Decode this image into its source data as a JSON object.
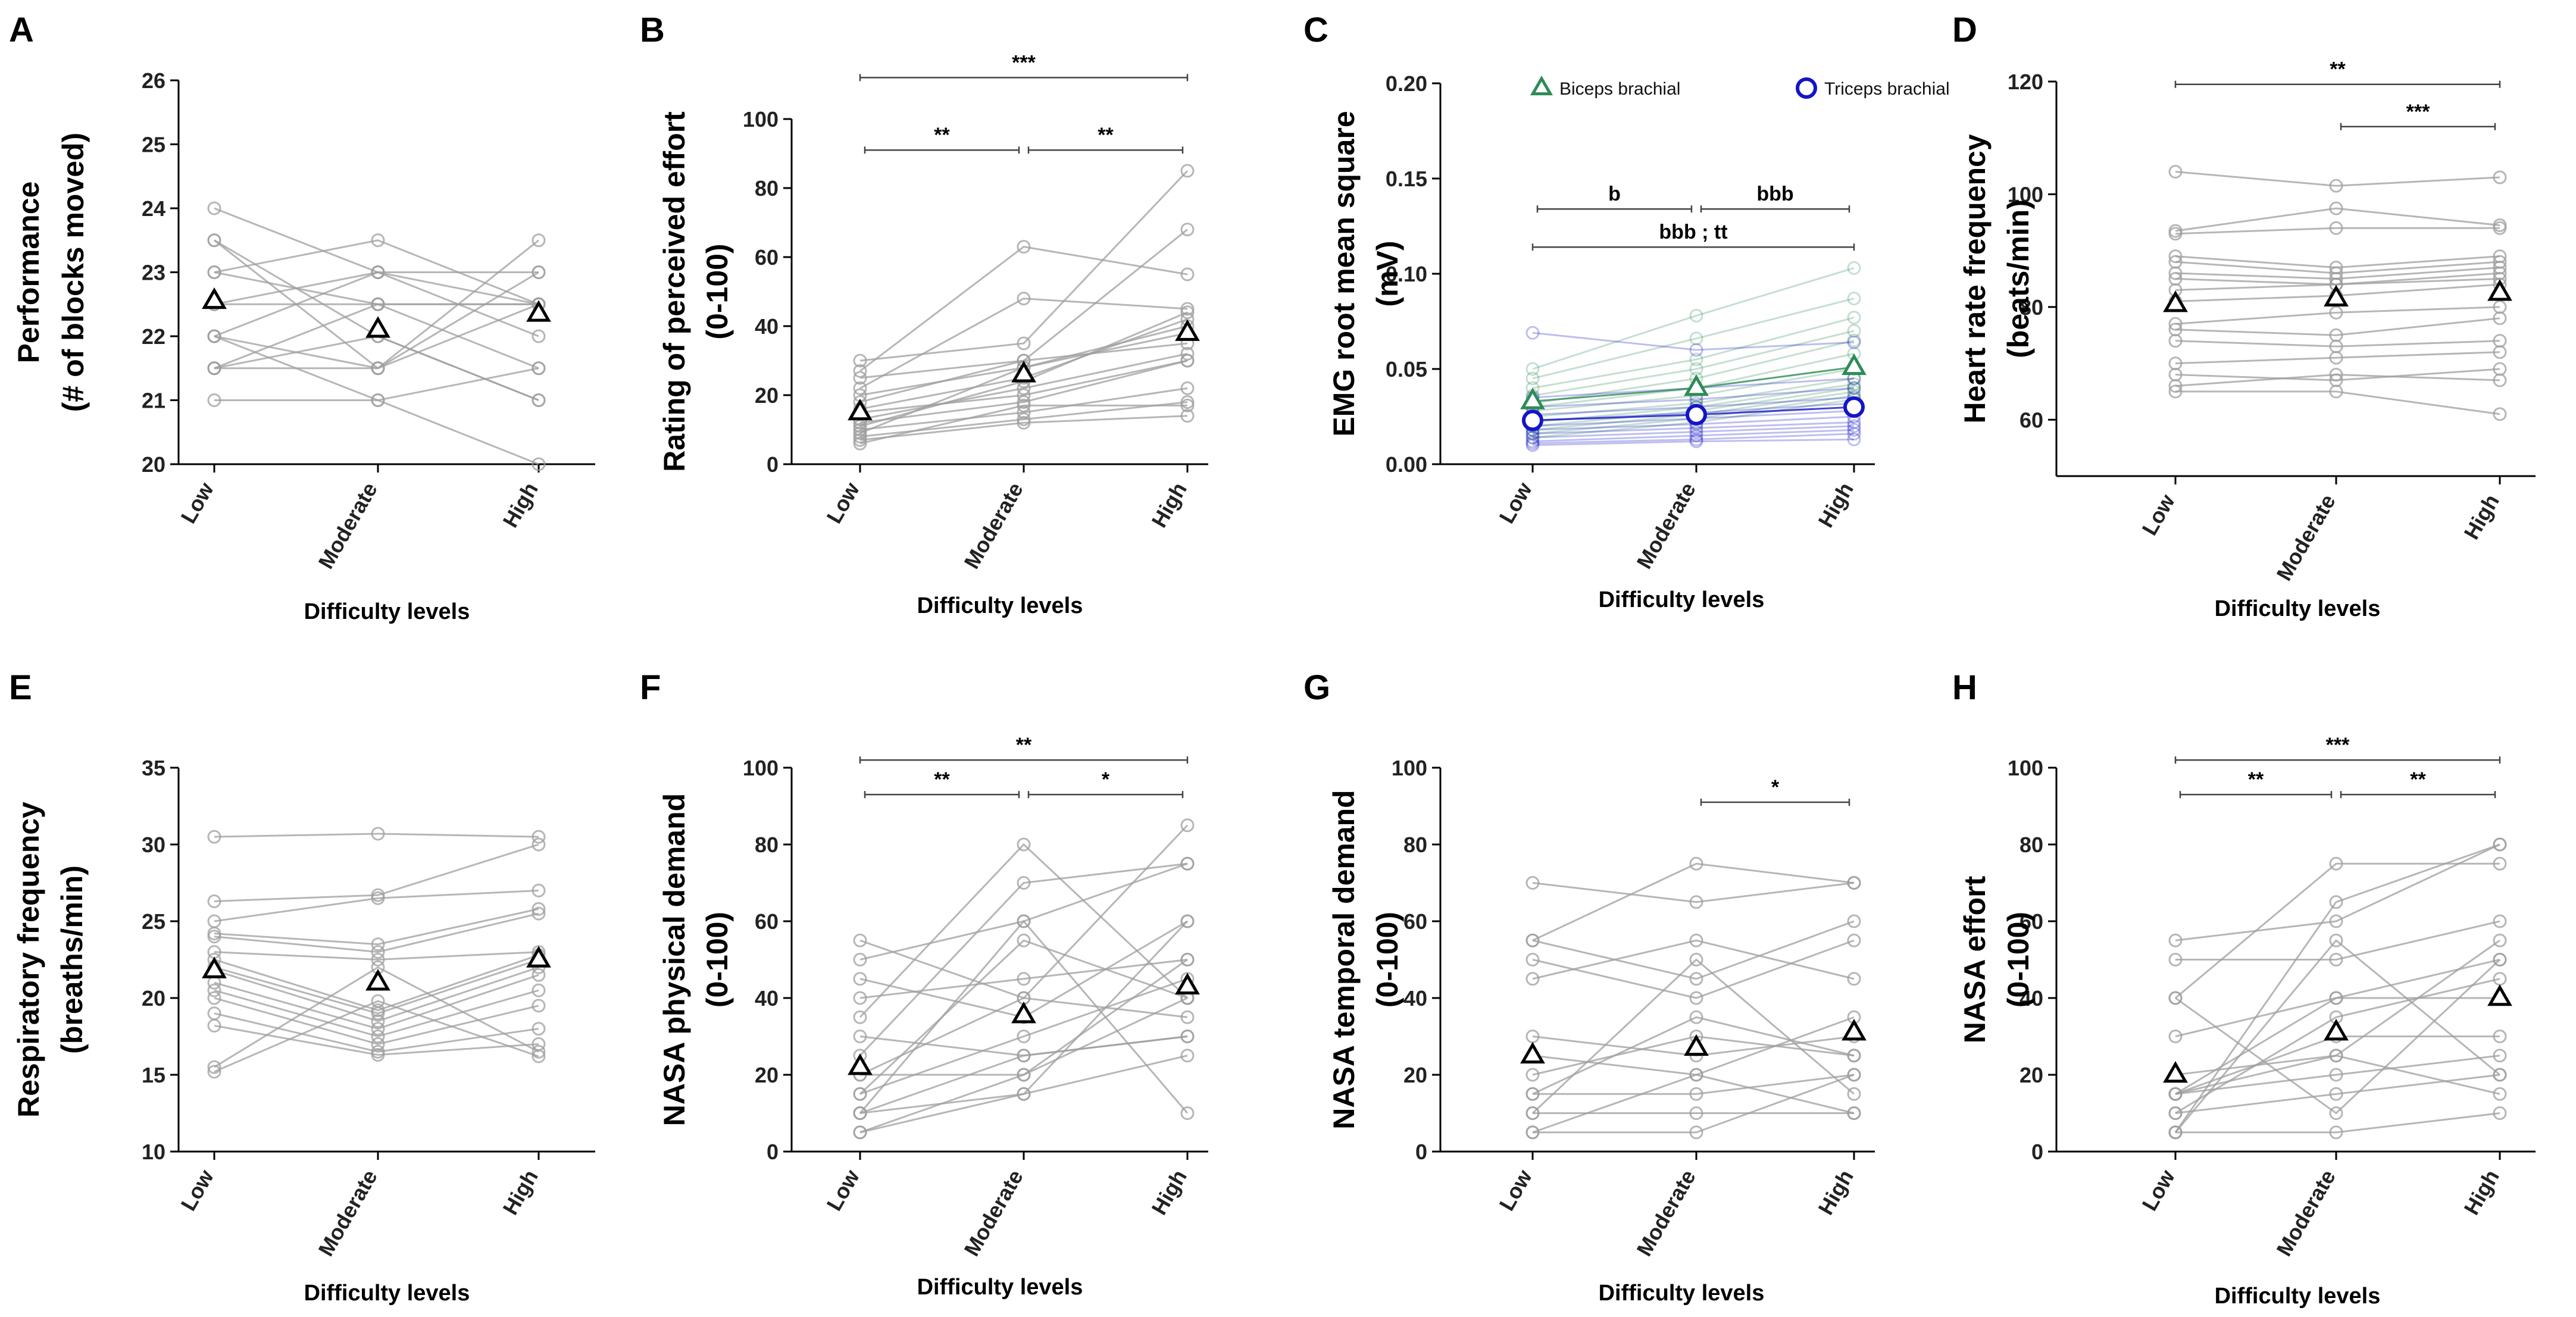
{
  "figure": {
    "colors": {
      "gray": "#9e9e9e",
      "green": "#2e8b57",
      "blue": "#1414c8",
      "black": "#000000"
    }
  },
  "chart_data": [
    {
      "id": "A",
      "type": "line",
      "label": "A",
      "ylabel": [
        "Performance",
        "(# of blocks moved)"
      ],
      "xlabel": "Difficulty levels",
      "categories": [
        "Low",
        "Moderate",
        "High"
      ],
      "ylim": [
        20,
        26
      ],
      "yticks": [
        20,
        21,
        22,
        23,
        24,
        25,
        26
      ],
      "mean": [
        22.55,
        22.1,
        22.35
      ],
      "participants": [
        [
          24,
          23,
          22.5
        ],
        [
          23.5,
          22,
          21
        ],
        [
          23.5,
          21.5,
          23.5
        ],
        [
          23,
          23.5,
          22.5
        ],
        [
          23,
          22.5,
          22.5
        ],
        [
          22.5,
          23,
          23
        ],
        [
          22.5,
          22.5,
          22.5
        ],
        [
          22,
          21.5,
          23
        ],
        [
          22,
          23,
          22
        ],
        [
          21.5,
          21.5,
          22.5
        ],
        [
          21.5,
          22.5,
          21.5
        ],
        [
          21,
          21,
          21.5
        ],
        [
          22,
          21,
          20
        ],
        [
          21.5,
          22,
          21
        ]
      ],
      "significance": []
    },
    {
      "id": "B",
      "type": "line",
      "label": "B",
      "ylabel": [
        "Rating of perceived effort",
        "(0-100)"
      ],
      "xlabel": "Difficulty levels",
      "categories": [
        "Low",
        "Moderate",
        "High"
      ],
      "ylim": [
        0,
        100
      ],
      "yticks": [
        0,
        20,
        40,
        60,
        80,
        100
      ],
      "mean": [
        15,
        26,
        38
      ],
      "participants": [
        [
          30,
          35,
          85
        ],
        [
          27,
          63,
          55
        ],
        [
          25,
          30,
          68
        ],
        [
          22,
          48,
          45
        ],
        [
          20,
          28,
          40
        ],
        [
          18,
          30,
          35
        ],
        [
          16,
          25,
          42
        ],
        [
          15,
          20,
          30
        ],
        [
          13,
          22,
          32
        ],
        [
          12,
          18,
          30
        ],
        [
          10,
          15,
          22
        ],
        [
          9,
          28,
          38
        ],
        [
          8,
          13,
          18
        ],
        [
          7,
          12,
          14
        ],
        [
          6,
          17,
          17
        ],
        [
          11,
          24,
          44
        ]
      ],
      "significance": [
        {
          "from": 0,
          "to": 2,
          "label": "***",
          "y": 112
        },
        {
          "from": 0,
          "to": 1,
          "label": "**",
          "y": 91
        },
        {
          "from": 1,
          "to": 2,
          "label": "**",
          "y": 91
        }
      ]
    },
    {
      "id": "C",
      "type": "line",
      "label": "C",
      "ylabel": [
        "EMG root mean square",
        "(mV)"
      ],
      "xlabel": "Difficulty levels",
      "categories": [
        "Low",
        "Moderate",
        "High"
      ],
      "ylim": [
        0,
        0.2
      ],
      "yticks": [
        "0.00",
        "0.05",
        "0.10",
        "0.15",
        "0.20"
      ],
      "legend": [
        "Biceps brachial",
        "Triceps brachial"
      ],
      "series": [
        {
          "name": "Biceps brachial",
          "color": "#2e8b57",
          "mean": [
            0.033,
            0.04,
            0.051
          ],
          "participants": [
            [
              0.05,
              0.078,
              0.103
            ],
            [
              0.045,
              0.066,
              0.087
            ],
            [
              0.04,
              0.055,
              0.077
            ],
            [
              0.036,
              0.05,
              0.07
            ],
            [
              0.032,
              0.045,
              0.065
            ],
            [
              0.03,
              0.04,
              0.058
            ],
            [
              0.028,
              0.036,
              0.05
            ],
            [
              0.025,
              0.032,
              0.045
            ],
            [
              0.022,
              0.03,
              0.042
            ],
            [
              0.02,
              0.028,
              0.04
            ],
            [
              0.018,
              0.026,
              0.038
            ],
            [
              0.016,
              0.024,
              0.036
            ],
            [
              0.014,
              0.022,
              0.034
            ]
          ]
        },
        {
          "name": "Triceps brachial",
          "color": "#1414c8",
          "mean": [
            0.023,
            0.026,
            0.03
          ],
          "participants": [
            [
              0.069,
              0.06,
              0.064
            ],
            [
              0.035,
              0.04,
              0.045
            ],
            [
              0.03,
              0.034,
              0.04
            ],
            [
              0.026,
              0.03,
              0.035
            ],
            [
              0.023,
              0.027,
              0.032
            ],
            [
              0.02,
              0.024,
              0.028
            ],
            [
              0.018,
              0.021,
              0.025
            ],
            [
              0.016,
              0.019,
              0.022
            ],
            [
              0.014,
              0.017,
              0.02
            ],
            [
              0.012,
              0.015,
              0.018
            ],
            [
              0.011,
              0.013,
              0.016
            ],
            [
              0.01,
              0.012,
              0.013
            ]
          ]
        }
      ],
      "significance": [
        {
          "from": 0,
          "to": 1,
          "label": "b",
          "y": 0.134
        },
        {
          "from": 1,
          "to": 2,
          "label": "bbb",
          "y": 0.134
        },
        {
          "from": 0,
          "to": 2,
          "label": "bbb ; tt",
          "y": 0.114
        }
      ]
    },
    {
      "id": "D",
      "type": "line",
      "label": "D",
      "ylabel": [
        "Heart rate frequency",
        "(beats/min)"
      ],
      "xlabel": "Difficulty levels",
      "categories": [
        "Low",
        "Moderate",
        "High"
      ],
      "ylim": [
        50,
        120
      ],
      "yticks": [
        60,
        80,
        100,
        120
      ],
      "mean": [
        80.5,
        81.5,
        82.5
      ],
      "participants": [
        [
          104,
          101.5,
          103
        ],
        [
          93.5,
          97.5,
          94.5
        ],
        [
          93,
          94,
          94
        ],
        [
          89,
          87,
          89
        ],
        [
          88,
          86,
          88
        ],
        [
          86,
          85,
          87
        ],
        [
          85,
          84,
          86
        ],
        [
          83,
          84,
          85
        ],
        [
          81,
          82,
          84
        ],
        [
          77,
          79,
          80
        ],
        [
          76,
          75,
          78
        ],
        [
          74,
          73,
          74
        ],
        [
          70,
          71,
          72
        ],
        [
          68,
          67,
          69
        ],
        [
          66,
          68,
          67
        ],
        [
          65,
          65,
          61
        ]
      ],
      "significance": [
        {
          "from": 0,
          "to": 2,
          "label": "**",
          "y": 119.5
        },
        {
          "from": 1,
          "to": 2,
          "label": "***",
          "y": 112
        }
      ]
    },
    {
      "id": "E",
      "type": "line",
      "label": "E",
      "ylabel": [
        "Respiratory frequency",
        "(breaths/min)"
      ],
      "xlabel": "Difficulty levels",
      "categories": [
        "Low",
        "Moderate",
        "High"
      ],
      "ylim": [
        10,
        35
      ],
      "yticks": [
        10,
        15,
        20,
        25,
        30,
        35
      ],
      "mean": [
        21.8,
        21,
        22.5
      ],
      "participants": [
        [
          30.5,
          30.7,
          30.5
        ],
        [
          26.3,
          26.7,
          30
        ],
        [
          25,
          26.5,
          27
        ],
        [
          24.2,
          23.5,
          25.8
        ],
        [
          24,
          23,
          25.5
        ],
        [
          23,
          22.5,
          23
        ],
        [
          22.5,
          19.2,
          22.8
        ],
        [
          22,
          19,
          22.5
        ],
        [
          21.8,
          18.5,
          22
        ],
        [
          21,
          18,
          21.5
        ],
        [
          20.5,
          17.5,
          20.5
        ],
        [
          20,
          17,
          19.5
        ],
        [
          19,
          16.5,
          18
        ],
        [
          18.2,
          16.3,
          17
        ],
        [
          15.5,
          22,
          16.5
        ],
        [
          15.2,
          19.8,
          16.2
        ]
      ],
      "significance": []
    },
    {
      "id": "F",
      "type": "line",
      "label": "F",
      "ylabel": [
        "NASA physical demand",
        "(0-100)"
      ],
      "xlabel": "Difficulty levels",
      "categories": [
        "Low",
        "Moderate",
        "High"
      ],
      "ylim": [
        0,
        100
      ],
      "yticks": [
        0,
        20,
        40,
        60,
        80,
        100
      ],
      "mean": [
        22,
        35.5,
        43
      ],
      "participants": [
        [
          55,
          40,
          85
        ],
        [
          50,
          60,
          75
        ],
        [
          45,
          35,
          60
        ],
        [
          40,
          45,
          50
        ],
        [
          35,
          80,
          40
        ],
        [
          30,
          25,
          30
        ],
        [
          25,
          70,
          75
        ],
        [
          20,
          40,
          35
        ],
        [
          20,
          20,
          50
        ],
        [
          15,
          30,
          45
        ],
        [
          10,
          15,
          25
        ],
        [
          10,
          60,
          10
        ],
        [
          5,
          20,
          40
        ],
        [
          5,
          15,
          60
        ],
        [
          10,
          25,
          30
        ],
        [
          15,
          55,
          40
        ]
      ],
      "significance": [
        {
          "from": 0,
          "to": 2,
          "label": "**",
          "y": 102
        },
        {
          "from": 0,
          "to": 1,
          "label": "**",
          "y": 93
        },
        {
          "from": 1,
          "to": 2,
          "label": "*",
          "y": 93
        }
      ]
    },
    {
      "id": "G",
      "type": "line",
      "label": "G",
      "ylabel": [
        "NASA temporal demand",
        "(0-100)"
      ],
      "xlabel": "Difficulty levels",
      "categories": [
        "Low",
        "Moderate",
        "High"
      ],
      "ylim": [
        0,
        100
      ],
      "yticks": [
        0,
        20,
        40,
        60,
        80,
        100
      ],
      "mean": [
        25,
        27,
        31
      ],
      "participants": [
        [
          70,
          65,
          70
        ],
        [
          55,
          75,
          70
        ],
        [
          55,
          45,
          60
        ],
        [
          50,
          40,
          55
        ],
        [
          45,
          55,
          45
        ],
        [
          30,
          25,
          30
        ],
        [
          25,
          20,
          35
        ],
        [
          20,
          30,
          25
        ],
        [
          15,
          15,
          20
        ],
        [
          10,
          50,
          15
        ],
        [
          10,
          10,
          10
        ],
        [
          5,
          5,
          20
        ],
        [
          5,
          20,
          10
        ],
        [
          15,
          35,
          25
        ]
      ],
      "significance": [
        {
          "from": 1,
          "to": 2,
          "label": "*",
          "y": 91
        }
      ]
    },
    {
      "id": "H",
      "type": "line",
      "label": "H",
      "ylabel": [
        "NASA effort",
        "(0-100)"
      ],
      "xlabel": "Difficulty levels",
      "categories": [
        "Low",
        "Moderate",
        "High"
      ],
      "ylim": [
        0,
        100
      ],
      "yticks": [
        0,
        20,
        40,
        60,
        80,
        100
      ],
      "mean": [
        20,
        31,
        40
      ],
      "participants": [
        [
          55,
          60,
          80
        ],
        [
          50,
          50,
          60
        ],
        [
          40,
          75,
          75
        ],
        [
          40,
          10,
          50
        ],
        [
          30,
          40,
          40
        ],
        [
          20,
          25,
          55
        ],
        [
          15,
          40,
          50
        ],
        [
          15,
          20,
          25
        ],
        [
          15,
          30,
          30
        ],
        [
          10,
          15,
          20
        ],
        [
          5,
          65,
          80
        ],
        [
          5,
          5,
          10
        ],
        [
          15,
          25,
          15
        ],
        [
          10,
          35,
          45
        ],
        [
          5,
          55,
          20
        ]
      ],
      "significance": [
        {
          "from": 0,
          "to": 2,
          "label": "***",
          "y": 102
        },
        {
          "from": 0,
          "to": 1,
          "label": "**",
          "y": 93
        },
        {
          "from": 1,
          "to": 2,
          "label": "**",
          "y": 93
        }
      ]
    }
  ]
}
